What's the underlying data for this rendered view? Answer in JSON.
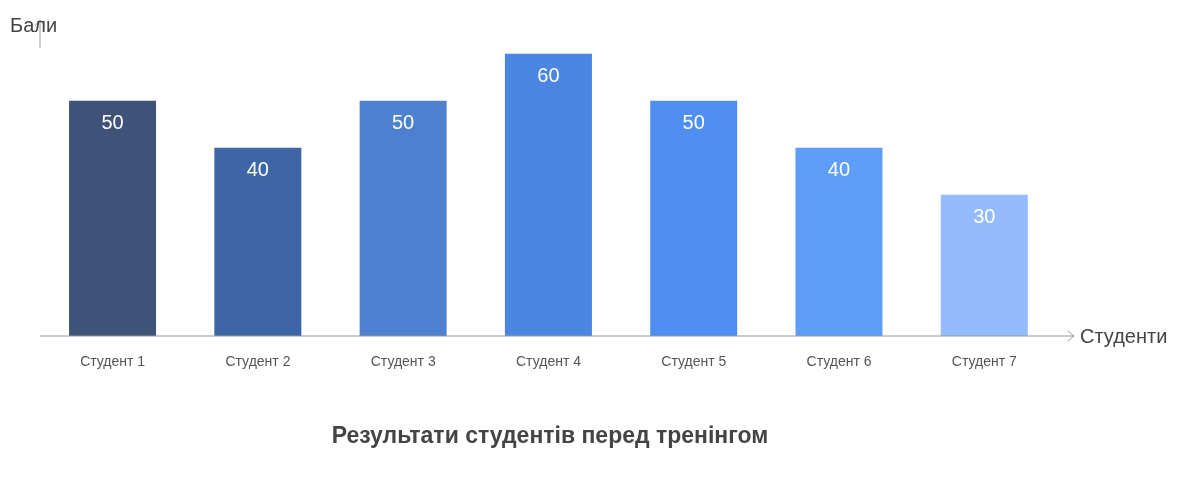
{
  "chart_data": {
    "type": "bar",
    "title": "Результати студентів перед тренінгом",
    "xlabel": "Студенти",
    "ylabel": "Бали",
    "categories": [
      "Студент 1",
      "Студент 2",
      "Студент 3",
      "Студент 4",
      "Студент 5",
      "Студент 6",
      "Студент 7"
    ],
    "values": [
      50,
      40,
      50,
      60,
      50,
      40,
      30
    ],
    "colors": [
      "#3f5378",
      "#3e66a6",
      "#4d80cf",
      "#4a86e2",
      "#4f8ff2",
      "#5f9ef8",
      "#93bbfd"
    ],
    "data_labels": true
  }
}
